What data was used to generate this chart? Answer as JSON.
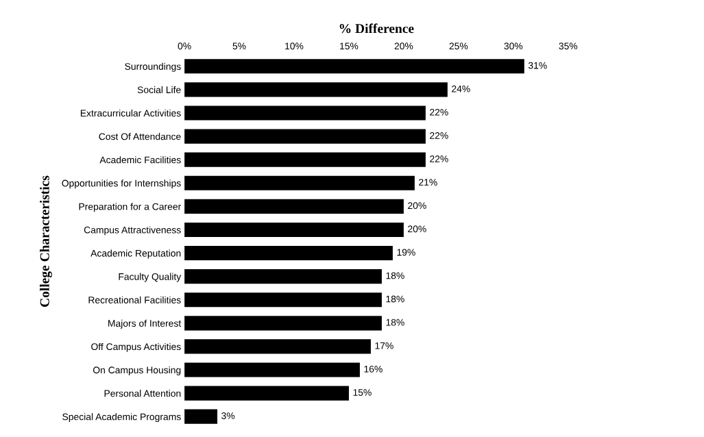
{
  "chart_data": {
    "type": "bar",
    "orientation": "horizontal",
    "xlabel": "% Difference",
    "ylabel": "College Characteristics",
    "categories": [
      "Surroundings",
      "Social Life",
      "Extracurricular Activities",
      "Cost Of Attendance",
      "Academic Facilities",
      "Opportunities for Internships",
      "Preparation for a Career",
      "Campus Attractiveness",
      "Academic Reputation",
      "Faculty Quality",
      "Recreational Facilities",
      "Majors of Interest",
      "Off Campus Activities",
      "On Campus Housing",
      "Personal Attention",
      "Special Academic Programs"
    ],
    "values": [
      31,
      24,
      22,
      22,
      22,
      21,
      20,
      20,
      19,
      18,
      18,
      18,
      17,
      16,
      15,
      3
    ],
    "value_labels": [
      "31%",
      "24%",
      "22%",
      "22%",
      "22%",
      "21%",
      "20%",
      "20%",
      "19%",
      "18%",
      "18%",
      "18%",
      "17%",
      "16%",
      "15%",
      "3%"
    ],
    "color": "#000000",
    "xlim": [
      0,
      35
    ],
    "xticks": [
      {
        "value": 0,
        "label": "0%"
      },
      {
        "value": 5,
        "label": "5%"
      },
      {
        "value": 10,
        "label": "10%"
      },
      {
        "value": 15,
        "label": "15%"
      },
      {
        "value": 20,
        "label": "20%"
      },
      {
        "value": 25,
        "label": "25%"
      },
      {
        "value": 30,
        "label": "30%"
      },
      {
        "value": 35,
        "label": "35%"
      }
    ],
    "grid": false,
    "legend": false
  }
}
